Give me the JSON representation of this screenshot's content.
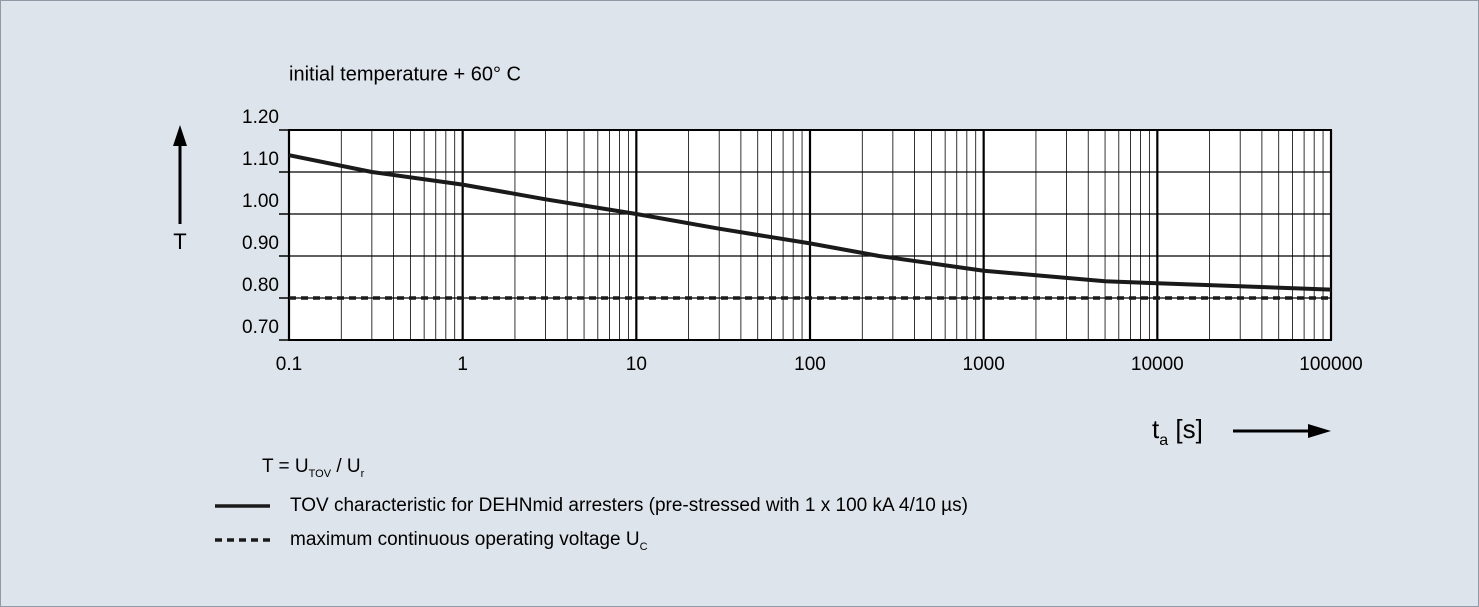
{
  "chart_data": {
    "type": "line",
    "title": "initial temperature + 60° C",
    "y_label": "T",
    "x_label": {
      "main": "t",
      "sub": "a",
      "rest": " [s]"
    },
    "formula": [
      "T = U",
      "TOV",
      " / U",
      "r"
    ],
    "x_log": true,
    "grid": true,
    "xlim": [
      0.1,
      100000
    ],
    "xticks": [
      0.1,
      1,
      10,
      100,
      1000,
      10000,
      100000
    ],
    "ylim": [
      0.7,
      1.2
    ],
    "yticks": [
      {
        "value": 0.7,
        "label": "0.70"
      },
      {
        "value": 0.8,
        "label": "0.80"
      },
      {
        "value": 0.9,
        "label": "0.90"
      },
      {
        "value": 1.0,
        "label": "1.00"
      },
      {
        "value": 1.1,
        "label": "1.10"
      },
      {
        "value": 1.2,
        "label": "1.20"
      }
    ],
    "x": [
      0.1,
      0.3,
      1,
      3,
      10,
      30,
      100,
      250,
      1000,
      5000,
      10000,
      30000,
      100000
    ],
    "series": [
      {
        "name": "TOV characteristic for DEHNmid arresters (pre-stressed with 1 x 100 kA 4/10 µs)",
        "color": "#1a1a1a",
        "style": "solid",
        "values": [
          1.14,
          1.1,
          1.07,
          1.035,
          1.0,
          0.965,
          0.93,
          0.9,
          0.865,
          0.84,
          0.835,
          0.828,
          0.82
        ]
      },
      {
        "name": "maximum continuous operating voltage U",
        "name_sub": "C",
        "color": "#1a1a1a",
        "style": "dashed",
        "values": [
          0.8,
          0.8,
          0.8,
          0.8,
          0.8,
          0.8,
          0.8,
          0.8,
          0.8,
          0.8,
          0.8,
          0.8,
          0.8
        ]
      }
    ]
  }
}
